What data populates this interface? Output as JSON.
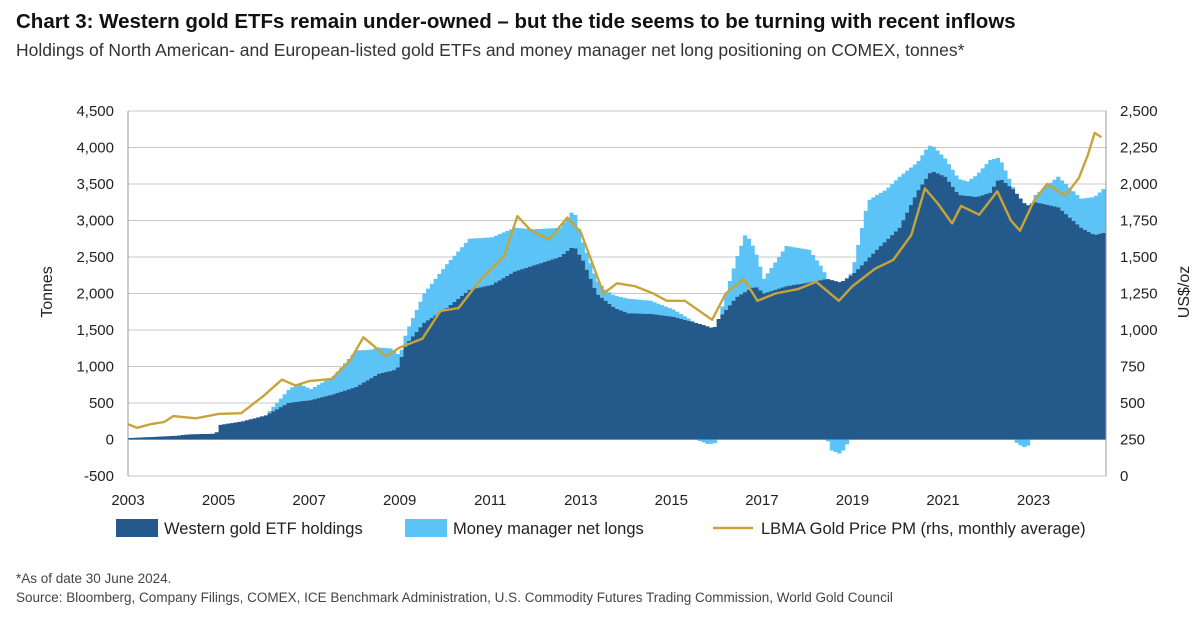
{
  "title": "Chart 3: Western gold ETFs remain under-owned – but the tide seems to be turning with recent inflows",
  "subtitle": "Holdings of North American- and European-listed gold ETFs and money manager net long positioning on COMEX, tonnes*",
  "footnote": "*As of date 30 June 2024.",
  "source": "Source: Bloomberg, Company Filings, COMEX, ICE Benchmark Administration, U.S. Commodity Futures Trading Commission, World Gold Council",
  "colors": {
    "etf": "#245a8b",
    "mm": "#5bc3f5",
    "gold": "#c8a33a",
    "grid": "#c8c8c8"
  },
  "chart_data": {
    "type": "area",
    "xlim": [
      2003,
      2024.6
    ],
    "x_tick_labels": [
      "2003",
      "2005",
      "2007",
      "2009",
      "2011",
      "2013",
      "2015",
      "2017",
      "2019",
      "2021",
      "2023"
    ],
    "ylabel": "Tonnes",
    "ylim": [
      -500,
      4500
    ],
    "y_tick_labels": [
      "4,500",
      "4,000",
      "3,500",
      "3,000",
      "2,500",
      "2,000",
      "1,500",
      "1,000",
      "500",
      "0",
      "-500"
    ],
    "y2label": "US$/oz",
    "y2lim": [
      0,
      2500
    ],
    "y2_tick_labels": [
      "2,500",
      "2,250",
      "2,000",
      "1,750",
      "1,500",
      "1,250",
      "1,000",
      "750",
      "500",
      "250",
      "0"
    ],
    "grid": true,
    "legend_position": "bottom",
    "series": [
      {
        "name": "Western gold ETF holdings",
        "kind": "stacked-area",
        "points": [
          [
            2003.0,
            20
          ],
          [
            2004.0,
            50
          ],
          [
            2004.3,
            70
          ],
          [
            2004.9,
            80
          ],
          [
            2005.0,
            200
          ],
          [
            2005.5,
            250
          ],
          [
            2006.0,
            330
          ],
          [
            2006.5,
            500
          ],
          [
            2007.0,
            540
          ],
          [
            2007.5,
            620
          ],
          [
            2008.0,
            720
          ],
          [
            2008.5,
            900
          ],
          [
            2008.9,
            960
          ],
          [
            2009.1,
            1300
          ],
          [
            2009.5,
            1600
          ],
          [
            2010.0,
            1800
          ],
          [
            2010.5,
            2050
          ],
          [
            2011.0,
            2120
          ],
          [
            2011.5,
            2300
          ],
          [
            2012.0,
            2400
          ],
          [
            2012.5,
            2500
          ],
          [
            2012.8,
            2650
          ],
          [
            2013.0,
            2450
          ],
          [
            2013.3,
            2000
          ],
          [
            2013.7,
            1800
          ],
          [
            2014.0,
            1730
          ],
          [
            2014.5,
            1720
          ],
          [
            2015.0,
            1680
          ],
          [
            2015.6,
            1580
          ],
          [
            2015.9,
            1520
          ],
          [
            2016.0,
            1650
          ],
          [
            2016.4,
            1950
          ],
          [
            2016.8,
            2100
          ],
          [
            2017.0,
            2000
          ],
          [
            2017.5,
            2100
          ],
          [
            2018.0,
            2150
          ],
          [
            2018.4,
            2200
          ],
          [
            2018.7,
            2150
          ],
          [
            2019.0,
            2280
          ],
          [
            2019.5,
            2600
          ],
          [
            2020.0,
            2900
          ],
          [
            2020.4,
            3400
          ],
          [
            2020.7,
            3680
          ],
          [
            2021.0,
            3600
          ],
          [
            2021.3,
            3350
          ],
          [
            2021.7,
            3320
          ],
          [
            2022.0,
            3380
          ],
          [
            2022.2,
            3580
          ],
          [
            2022.5,
            3430
          ],
          [
            2022.8,
            3200
          ],
          [
            2023.0,
            3250
          ],
          [
            2023.5,
            3180
          ],
          [
            2024.0,
            2900
          ],
          [
            2024.3,
            2800
          ],
          [
            2024.5,
            2830
          ]
        ]
      },
      {
        "name": "Money manager net longs",
        "kind": "stacked-area",
        "points": [
          [
            2003.0,
            0
          ],
          [
            2006.0,
            0
          ],
          [
            2006.7,
            250
          ],
          [
            2007.0,
            150
          ],
          [
            2007.5,
            250
          ],
          [
            2008.0,
            500
          ],
          [
            2008.3,
            400
          ],
          [
            2008.8,
            300
          ],
          [
            2009.0,
            100
          ],
          [
            2009.5,
            400
          ],
          [
            2010.0,
            600
          ],
          [
            2010.5,
            700
          ],
          [
            2011.0,
            650
          ],
          [
            2011.5,
            600
          ],
          [
            2011.9,
            500
          ],
          [
            2012.5,
            400
          ],
          [
            2012.8,
            500
          ],
          [
            2013.0,
            250
          ],
          [
            2013.5,
            150
          ],
          [
            2014.0,
            200
          ],
          [
            2014.5,
            180
          ],
          [
            2015.0,
            100
          ],
          [
            2015.5,
            0
          ],
          [
            2015.75,
            -60
          ],
          [
            2015.9,
            -60
          ],
          [
            2016.0,
            0
          ],
          [
            2016.3,
            400
          ],
          [
            2016.6,
            800
          ],
          [
            2017.0,
            200
          ],
          [
            2017.5,
            550
          ],
          [
            2018.0,
            450
          ],
          [
            2018.3,
            150
          ],
          [
            2018.5,
            -150
          ],
          [
            2018.7,
            -200
          ],
          [
            2018.9,
            0
          ],
          [
            2019.0,
            150
          ],
          [
            2019.3,
            800
          ],
          [
            2019.7,
            700
          ],
          [
            2020.0,
            700
          ],
          [
            2020.4,
            400
          ],
          [
            2020.6,
            400
          ],
          [
            2021.0,
            250
          ],
          [
            2021.5,
            200
          ],
          [
            2022.0,
            450
          ],
          [
            2022.3,
            200
          ],
          [
            2022.6,
            -60
          ],
          [
            2022.8,
            -120
          ],
          [
            2023.0,
            100
          ],
          [
            2023.5,
            420
          ],
          [
            2024.0,
            400
          ],
          [
            2024.5,
            600
          ]
        ]
      },
      {
        "name": "LBMA Gold Price PM (rhs, monthly average)",
        "kind": "line",
        "axis": "right",
        "points": [
          [
            2003.0,
            355
          ],
          [
            2003.2,
            330
          ],
          [
            2003.5,
            355
          ],
          [
            2003.8,
            370
          ],
          [
            2004.0,
            410
          ],
          [
            2004.5,
            395
          ],
          [
            2005.0,
            425
          ],
          [
            2005.5,
            430
          ],
          [
            2006.0,
            550
          ],
          [
            2006.4,
            660
          ],
          [
            2006.7,
            620
          ],
          [
            2007.0,
            650
          ],
          [
            2007.5,
            665
          ],
          [
            2007.9,
            790
          ],
          [
            2008.2,
            950
          ],
          [
            2008.7,
            820
          ],
          [
            2009.0,
            880
          ],
          [
            2009.5,
            940
          ],
          [
            2009.9,
            1130
          ],
          [
            2010.3,
            1150
          ],
          [
            2010.8,
            1350
          ],
          [
            2011.3,
            1500
          ],
          [
            2011.6,
            1780
          ],
          [
            2011.9,
            1680
          ],
          [
            2012.3,
            1620
          ],
          [
            2012.7,
            1770
          ],
          [
            2013.0,
            1670
          ],
          [
            2013.3,
            1420
          ],
          [
            2013.5,
            1250
          ],
          [
            2013.8,
            1320
          ],
          [
            2014.2,
            1300
          ],
          [
            2014.6,
            1250
          ],
          [
            2014.9,
            1200
          ],
          [
            2015.3,
            1200
          ],
          [
            2015.9,
            1070
          ],
          [
            2016.2,
            1250
          ],
          [
            2016.6,
            1350
          ],
          [
            2016.9,
            1200
          ],
          [
            2017.3,
            1250
          ],
          [
            2017.8,
            1280
          ],
          [
            2018.2,
            1330
          ],
          [
            2018.7,
            1200
          ],
          [
            2019.0,
            1300
          ],
          [
            2019.5,
            1420
          ],
          [
            2019.9,
            1480
          ],
          [
            2020.3,
            1650
          ],
          [
            2020.6,
            1970
          ],
          [
            2020.9,
            1860
          ],
          [
            2021.2,
            1730
          ],
          [
            2021.4,
            1850
          ],
          [
            2021.8,
            1790
          ],
          [
            2022.2,
            1950
          ],
          [
            2022.5,
            1750
          ],
          [
            2022.7,
            1680
          ],
          [
            2023.0,
            1880
          ],
          [
            2023.3,
            2000
          ],
          [
            2023.7,
            1920
          ],
          [
            2024.0,
            2040
          ],
          [
            2024.2,
            2200
          ],
          [
            2024.35,
            2350
          ],
          [
            2024.5,
            2320
          ]
        ]
      }
    ]
  }
}
